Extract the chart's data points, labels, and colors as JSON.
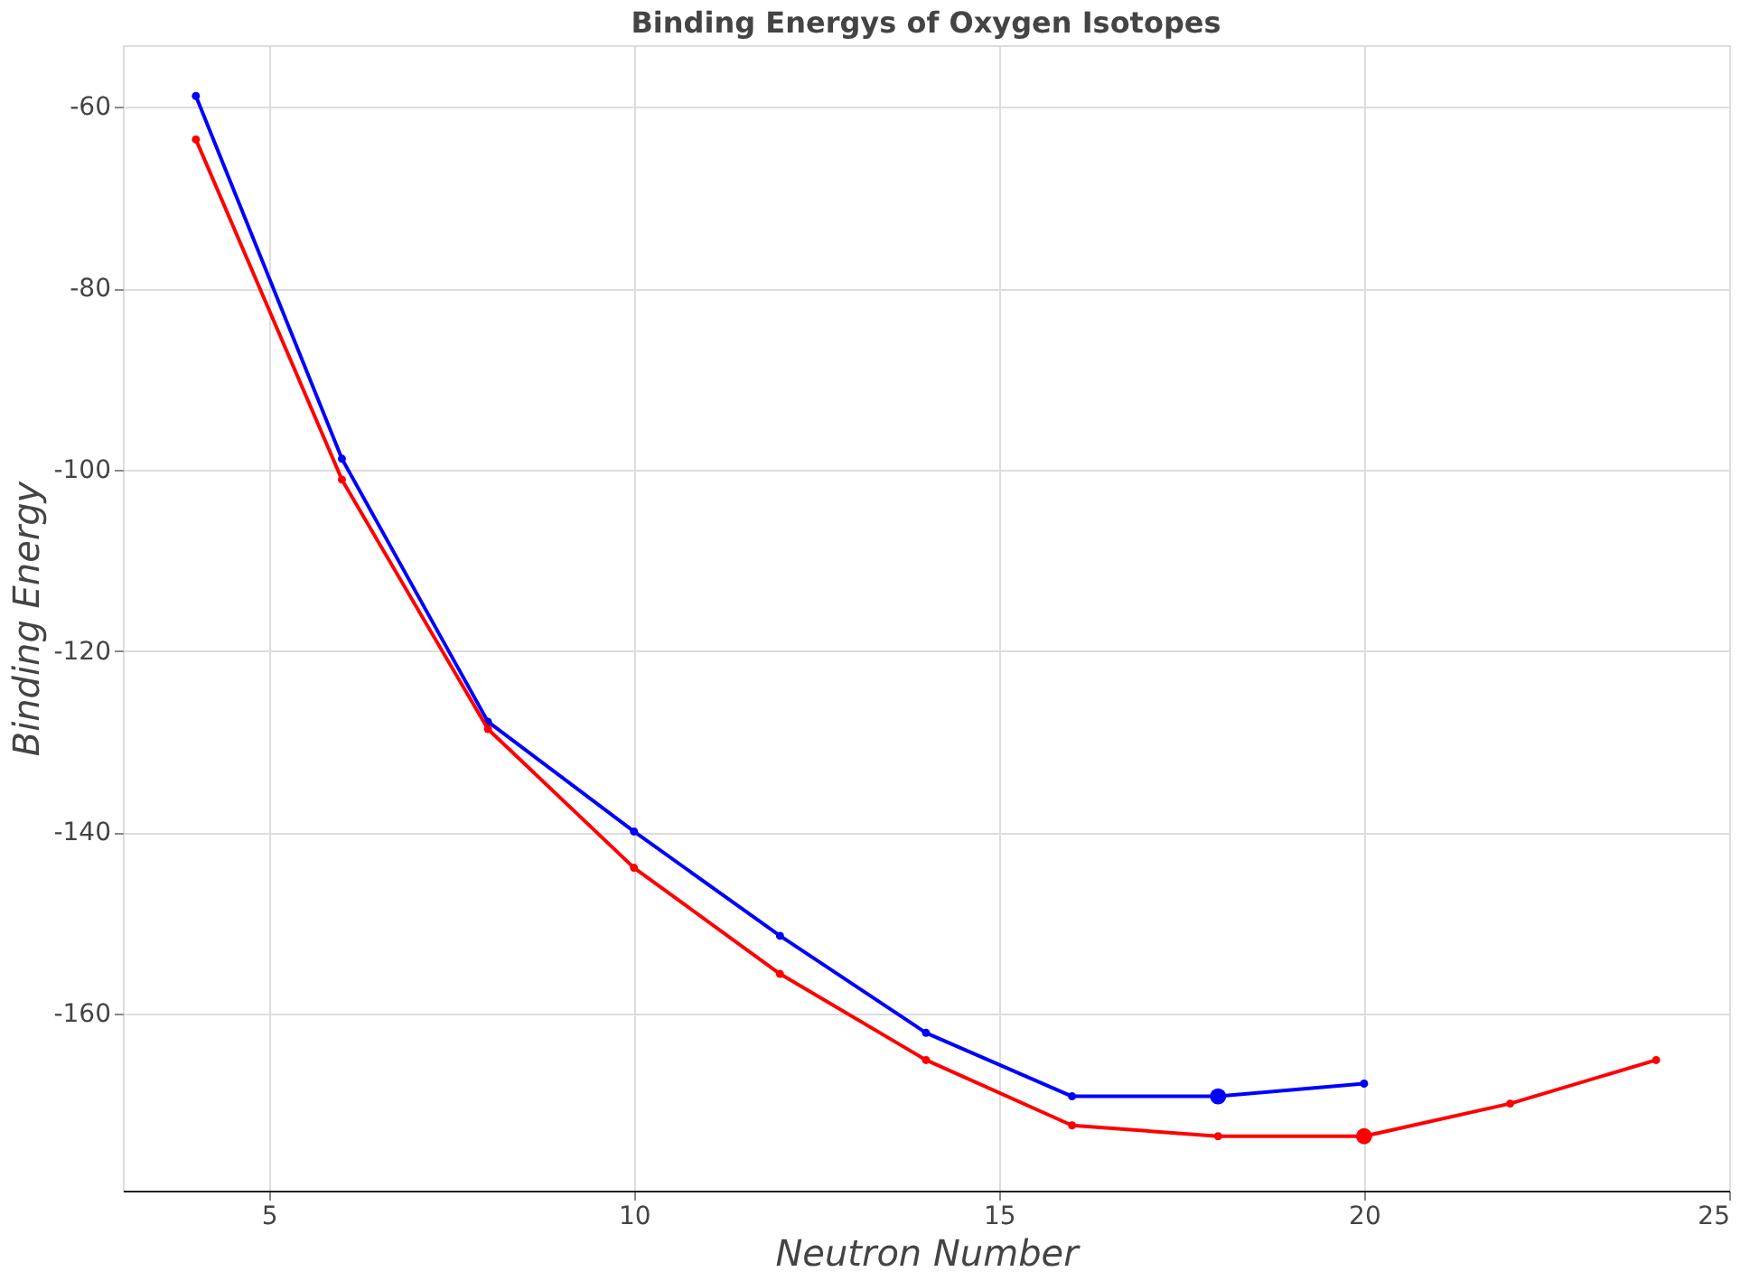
{
  "chart_data": {
    "type": "line",
    "title": "Binding Energys of Oxygen Isotopes",
    "xlabel": "Neutron Number",
    "ylabel": "Binding Energy",
    "xlim": [
      3,
      25
    ],
    "xticks": [
      5,
      10,
      15,
      20,
      25
    ],
    "ylim": [
      -179.5,
      -53.2
    ],
    "yticks": [
      -60,
      -80,
      -100,
      -120,
      -140,
      -160
    ],
    "grid": true,
    "marker": "circle",
    "line_style": "solid",
    "series": [
      {
        "color": "#0000ff",
        "x": [
          4,
          6,
          8,
          10,
          12,
          14,
          16,
          18,
          20
        ],
        "values": [
          -58.8,
          -98.8,
          -127.8,
          -139.9,
          -151.4,
          -162.1,
          -169.1,
          -169.1,
          -167.7
        ]
      },
      {
        "color": "#ff0000",
        "x": [
          4,
          6,
          8,
          10,
          12,
          14,
          16,
          18,
          20,
          22,
          24
        ],
        "values": [
          -63.6,
          -101.1,
          -128.6,
          -143.9,
          -155.6,
          -165.1,
          -172.3,
          -173.5,
          -173.5,
          -169.9,
          -165.1
        ]
      },
      {
        "type": "scatter",
        "color": "#0000ff",
        "x": [
          18
        ],
        "values": [
          -169.1
        ]
      },
      {
        "type": "scatter",
        "color": "#ff0000",
        "x": [
          20
        ],
        "values": [
          -173.5
        ]
      }
    ]
  }
}
